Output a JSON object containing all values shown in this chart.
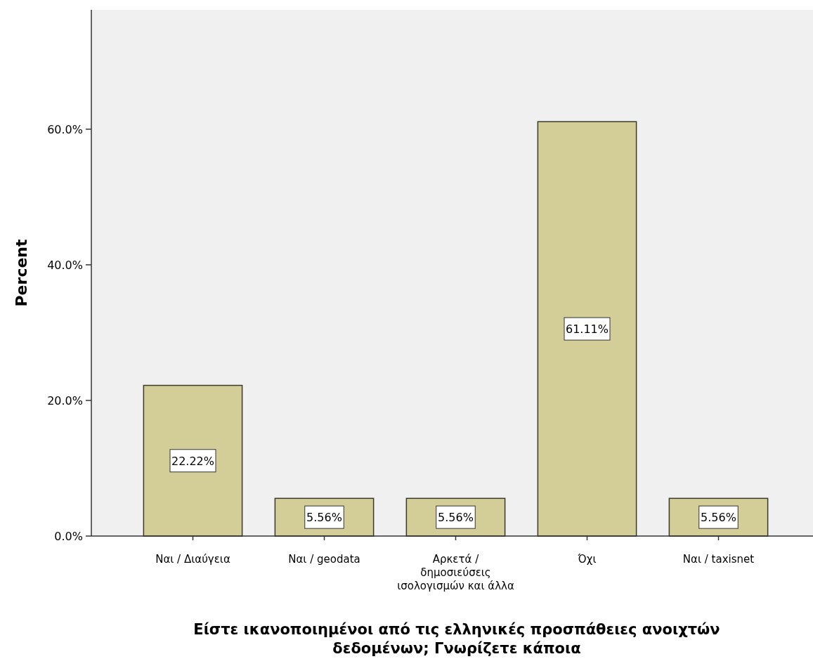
{
  "chart_data": {
    "type": "bar",
    "xlabel": "Είστε ικανοποιημένοι από τις ελληνικές προσπάθειες ανοιχτών δεδομένων; Γνωρίζετε κάποια",
    "ylabel": "Percent",
    "categories": [
      "Ναι / Διαύγεια",
      "Ναι / geodata",
      "Αρκετά / δημοσιεύσεις ισολογισμών και άλλα",
      "Όχι",
      "Ναι / taxisnet"
    ],
    "values": [
      22.22,
      5.56,
      5.56,
      61.11,
      5.56
    ],
    "value_labels": [
      "22.22%",
      "5.56%",
      "5.56%",
      "61.11%",
      "5.56%"
    ],
    "color": "#d3ce98",
    "ylim": [
      0,
      77.6
    ],
    "yticks": [
      {
        "value": 0,
        "label": "0.0%"
      },
      {
        "value": 20,
        "label": "20.0%"
      },
      {
        "value": 40,
        "label": "40.0%"
      },
      {
        "value": 60,
        "label": "60.0%"
      }
    ],
    "grid": false
  }
}
